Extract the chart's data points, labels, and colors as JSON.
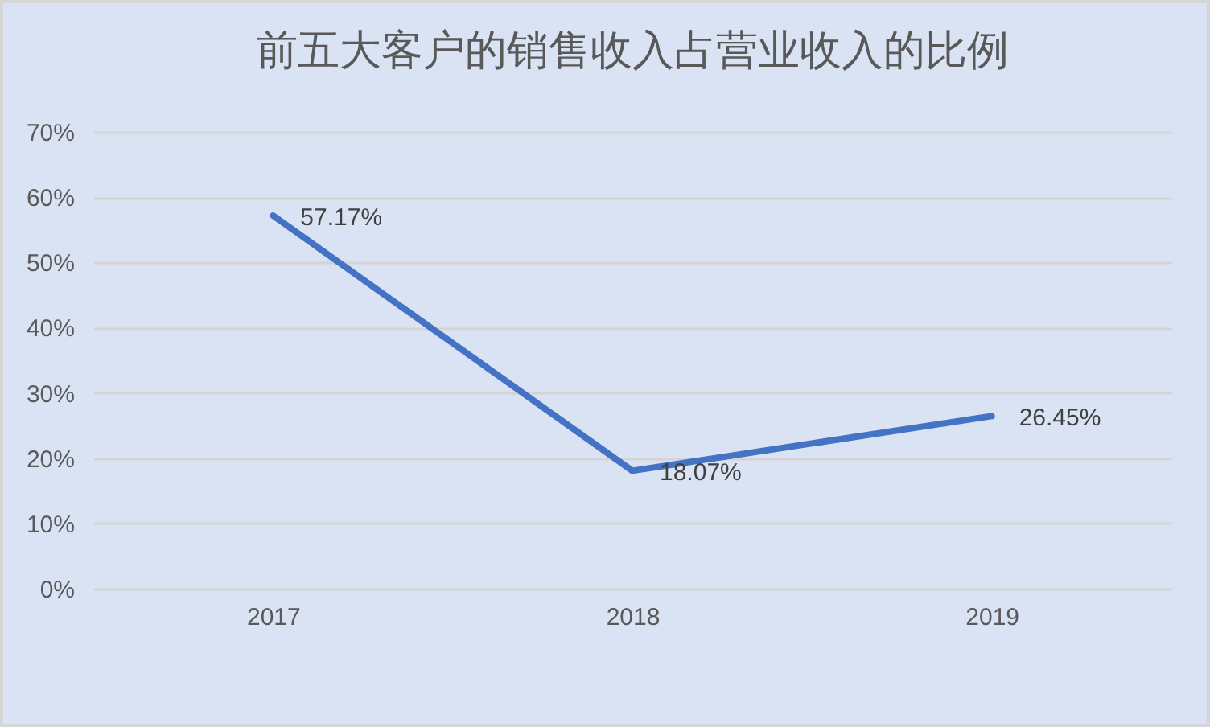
{
  "chart_data": {
    "type": "line",
    "title": "前五大客户的销售收入占营业收入的比例",
    "categories": [
      "2017",
      "2018",
      "2019"
    ],
    "series": [
      {
        "color": "#4472c4",
        "values": [
          57.17,
          18.07,
          26.45
        ],
        "value_labels": [
          "57.17%",
          "18.07%",
          "26.45%"
        ]
      }
    ],
    "ylim": [
      0,
      70
    ],
    "yticks": [
      {
        "value": 0,
        "label": "0%"
      },
      {
        "value": 10,
        "label": "10%"
      },
      {
        "value": 20,
        "label": "20%"
      },
      {
        "value": 30,
        "label": "30%"
      },
      {
        "value": 40,
        "label": "40%"
      },
      {
        "value": 50,
        "label": "50%"
      },
      {
        "value": 60,
        "label": "60%"
      },
      {
        "value": 70,
        "label": "70%"
      }
    ],
    "grid": "y",
    "line_style": "solid"
  }
}
